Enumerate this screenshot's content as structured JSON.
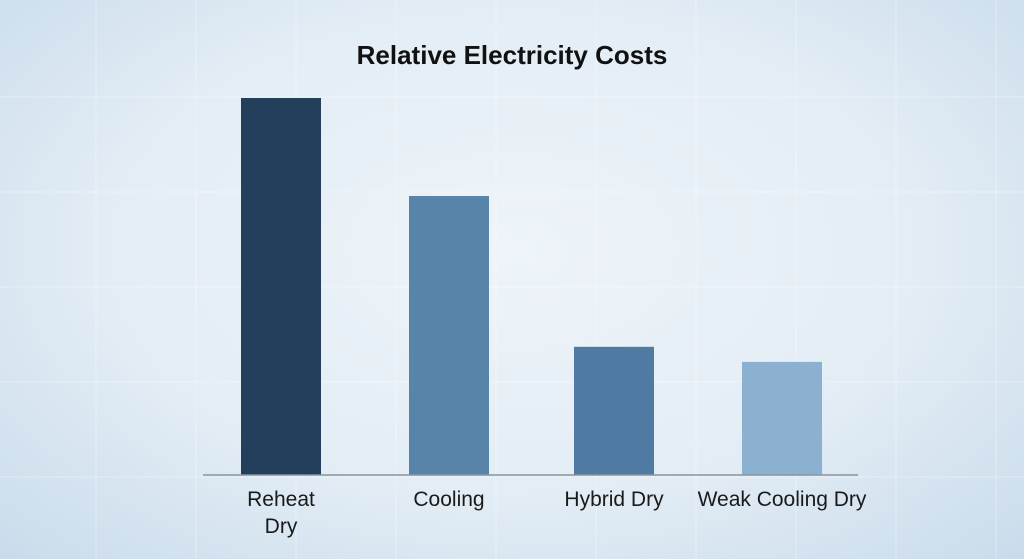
{
  "chart_data": {
    "type": "bar",
    "title": "Relative Electricity Costs",
    "xlabel": "",
    "ylabel": "",
    "categories": [
      "Reheat Dry",
      "Cooling",
      "Hybrid Dry",
      "Weak Cooling Dry"
    ],
    "category_lines": [
      [
        "Reheat",
        "Dry"
      ],
      [
        "Cooling"
      ],
      [
        "Hybrid Dry"
      ],
      [
        "Weak Cooling Dry"
      ]
    ],
    "values": [
      100,
      74,
      34,
      30
    ],
    "ylim": [
      0,
      100
    ],
    "grid": false,
    "legend": "none",
    "colors": [
      "#243f5c",
      "#5884aa",
      "#4f7ba2",
      "#8cb1d0"
    ]
  }
}
